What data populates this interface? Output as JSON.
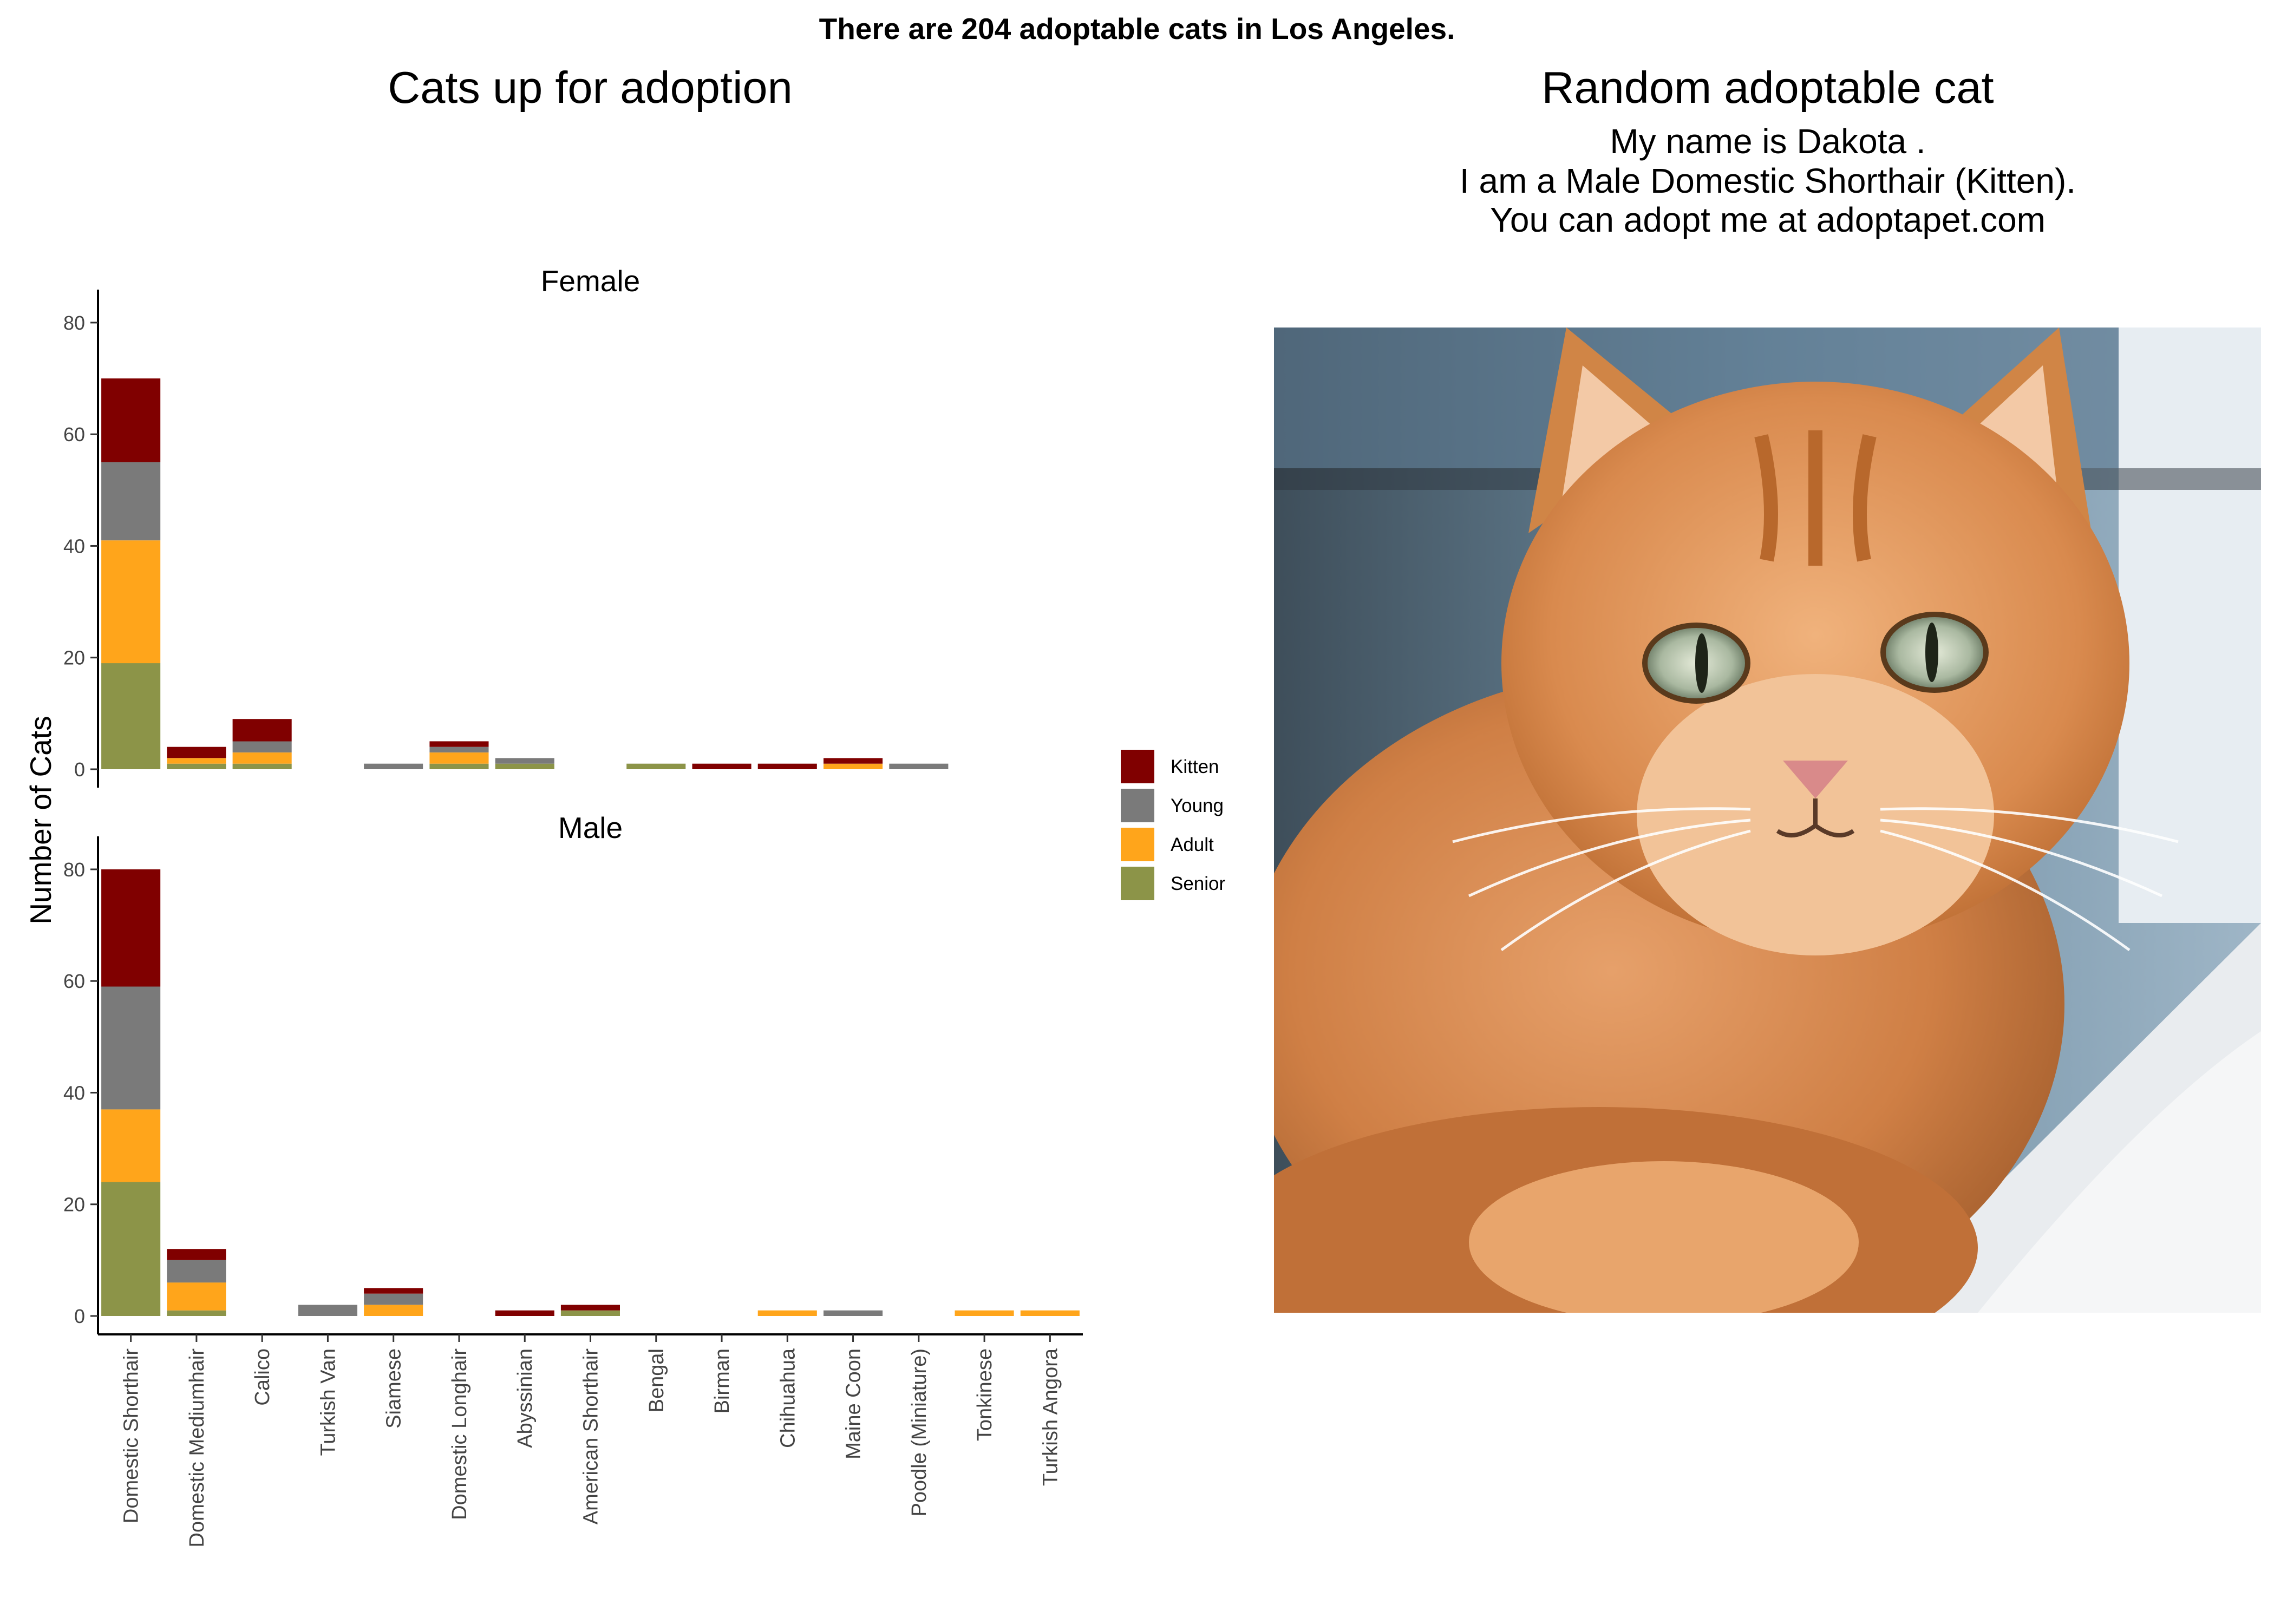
{
  "main_title": "There are 204 adoptable cats in Los Angeles.",
  "left_panel": {
    "title": "Cats up for adoption"
  },
  "right_panel": {
    "title": "Random adoptable cat",
    "caption_lines": [
      "My name is Dakota .",
      "I am a Male Domestic Shorthair (Kitten).",
      "You can adopt me at adoptapet.com"
    ],
    "photo_icon": "orange-tabby-cat-photo"
  },
  "chart_data": {
    "type": "bar",
    "stacked": true,
    "ylabel": "Number of Cats",
    "ylim": [
      0,
      83
    ],
    "yticks": [
      0,
      20,
      40,
      60,
      80
    ],
    "grid": false,
    "legend_position": "right",
    "categories": [
      "Domestic Shorthair",
      "Domestic Mediumhair",
      "Calico",
      "Turkish Van",
      "Siamese",
      "Domestic Longhair",
      "Abyssinian",
      "American Shorthair",
      "Bengal",
      "Birman",
      "Chihuahua",
      "Maine Coon",
      "Poodle (Miniature)",
      "Tonkinese",
      "Turkish Angora"
    ],
    "stack_order": [
      "Senior",
      "Adult",
      "Young",
      "Kitten"
    ],
    "legend": [
      {
        "name": "Kitten",
        "color": "#800000"
      },
      {
        "name": "Young",
        "color": "#7a7a7a"
      },
      {
        "name": "Adult",
        "color": "#ffa51b"
      },
      {
        "name": "Senior",
        "color": "#8c9448"
      }
    ],
    "facets": [
      {
        "name": "Female",
        "series": [
          {
            "name": "Kitten",
            "values": [
              15,
              2,
              4,
              0,
              0,
              1,
              0,
              0,
              0,
              1,
              1,
              1,
              0,
              0,
              0
            ]
          },
          {
            "name": "Young",
            "values": [
              14,
              0,
              2,
              0,
              1,
              1,
              1,
              0,
              0,
              0,
              0,
              0,
              1,
              0,
              0
            ]
          },
          {
            "name": "Adult",
            "values": [
              22,
              1,
              2,
              0,
              0,
              2,
              0,
              0,
              0,
              0,
              0,
              1,
              0,
              0,
              0
            ]
          },
          {
            "name": "Senior",
            "values": [
              19,
              1,
              1,
              0,
              0,
              1,
              1,
              0,
              1,
              0,
              0,
              0,
              0,
              0,
              0
            ]
          }
        ]
      },
      {
        "name": "Male",
        "series": [
          {
            "name": "Kitten",
            "values": [
              21,
              2,
              0,
              0,
              1,
              0,
              1,
              1,
              0,
              0,
              0,
              0,
              0,
              0,
              0
            ]
          },
          {
            "name": "Young",
            "values": [
              22,
              4,
              0,
              2,
              2,
              0,
              0,
              0,
              0,
              0,
              0,
              1,
              0,
              0,
              0
            ]
          },
          {
            "name": "Adult",
            "values": [
              13,
              5,
              0,
              0,
              2,
              0,
              0,
              0,
              0,
              0,
              1,
              0,
              0,
              1,
              1
            ]
          },
          {
            "name": "Senior",
            "values": [
              24,
              1,
              0,
              0,
              0,
              0,
              0,
              1,
              0,
              0,
              0,
              0,
              0,
              0,
              0
            ]
          }
        ]
      }
    ]
  }
}
